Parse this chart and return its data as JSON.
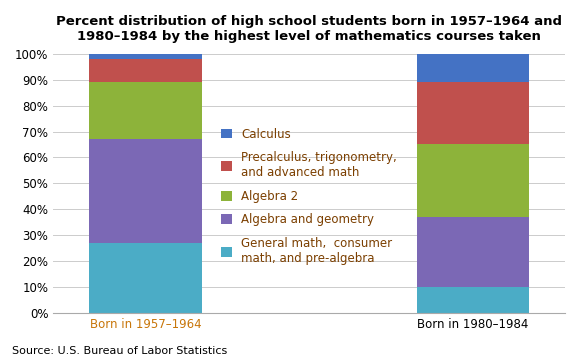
{
  "categories": [
    "Born in 1957–1964",
    "Born in 1980–1984"
  ],
  "series": [
    {
      "label": "General math,  consumer\nmath, and pre-algebra",
      "values": [
        27,
        10
      ],
      "color": "#4BACC6"
    },
    {
      "label": "Algebra and geometry",
      "values": [
        40,
        27
      ],
      "color": "#7B68B5"
    },
    {
      "label": "Algebra 2",
      "values": [
        22,
        28
      ],
      "color": "#8DB33A"
    },
    {
      "label": "Precalculus, trigonometry,\nand advanced math",
      "values": [
        9,
        24
      ],
      "color": "#C0504D"
    },
    {
      "label": "Calculus",
      "values": [
        2,
        11
      ],
      "color": "#4472C4"
    }
  ],
  "title": "Percent distribution of high school students born in 1957–1964 and\n1980–1984 by the highest level of mathematics courses taken",
  "ylim": [
    0,
    100
  ],
  "yticks": [
    0,
    10,
    20,
    30,
    40,
    50,
    60,
    70,
    80,
    90,
    100
  ],
  "source": "Source: U.S. Bureau of Labor Statistics",
  "background_color": "#FFFFFF",
  "title_fontsize": 9.5,
  "tick_fontsize": 8.5,
  "legend_fontsize": 8.5,
  "source_fontsize": 8,
  "legend_text_color": "#7B3F00",
  "xtick_color_0": "#C8760A",
  "xtick_color_1": "#000000",
  "bar_positions": [
    0.18,
    0.82
  ],
  "bar_width": 0.22
}
